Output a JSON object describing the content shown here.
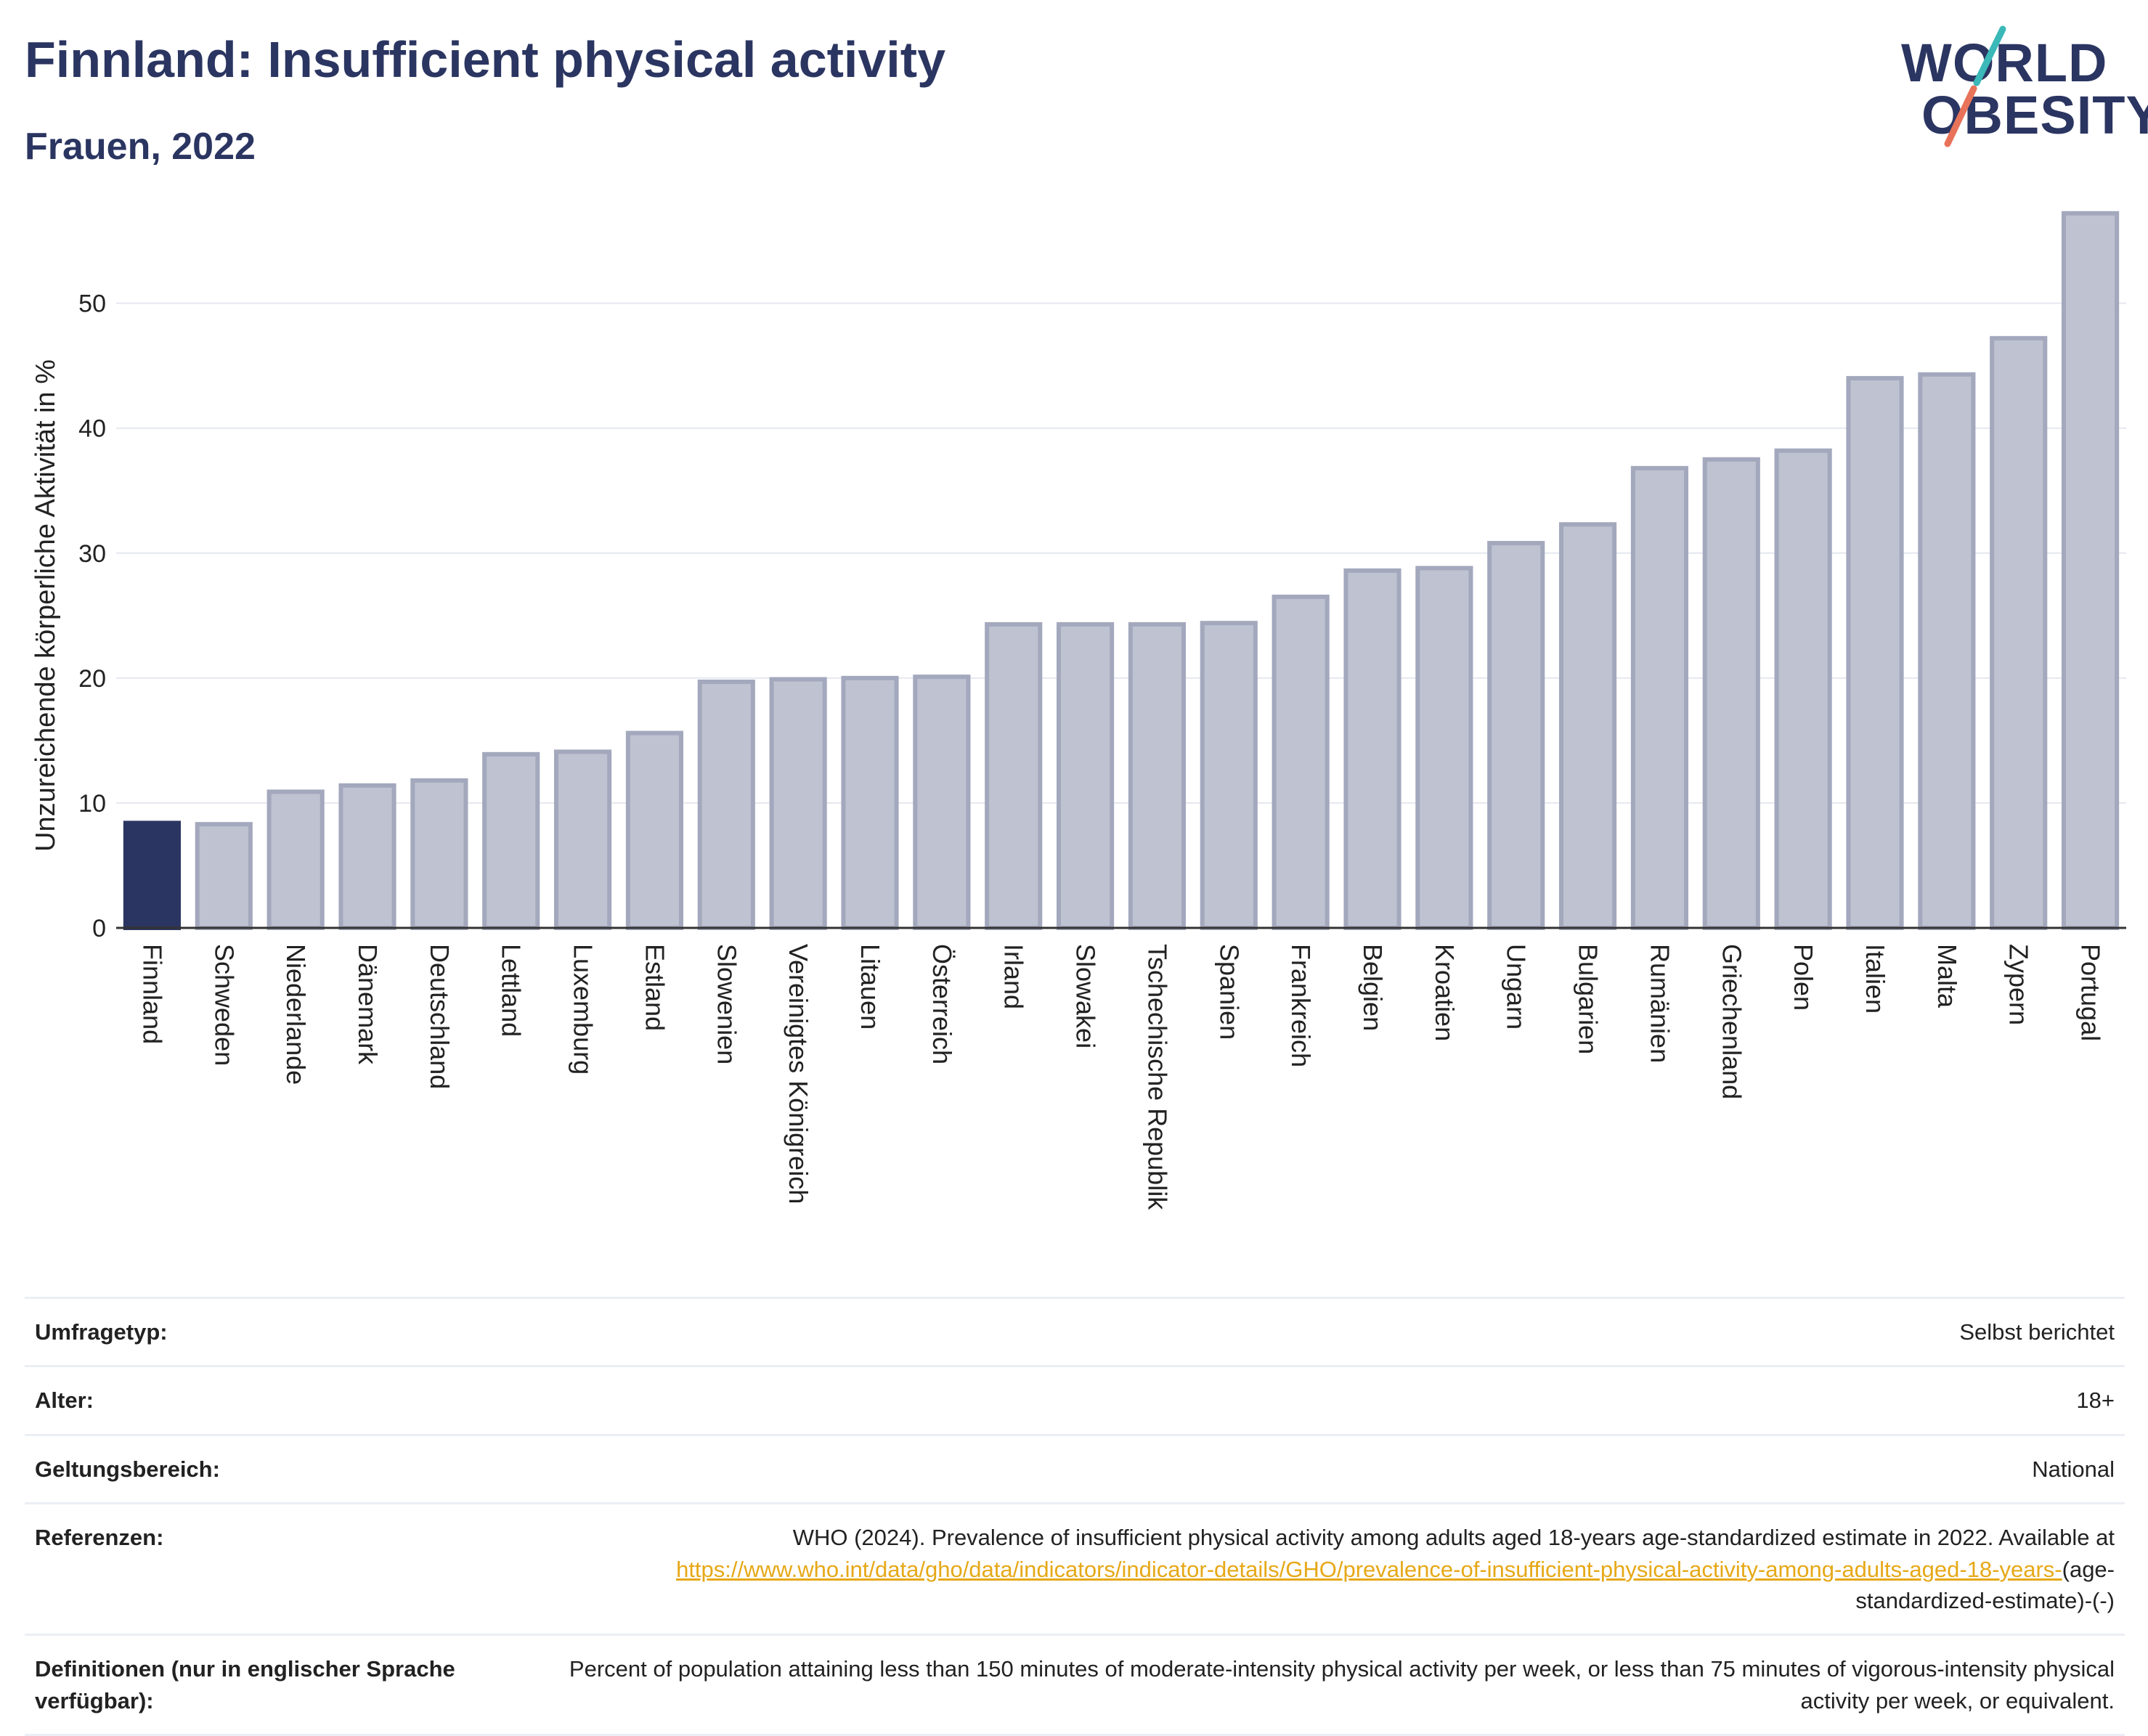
{
  "header": {
    "title": "Finnland: Insufficient physical activity",
    "subtitle": "Frauen, 2022"
  },
  "logo": {
    "line1": "WORLD",
    "line2": "OBESITY"
  },
  "colors": {
    "highlight": "#2b3561",
    "bar_fill": "#bec2d1",
    "bar_stroke": "#a3a8bd",
    "accent_teal": "#3bb8b8",
    "accent_coral": "#e8735a",
    "link": "#e6a817"
  },
  "chart_data": {
    "type": "bar",
    "ylabel": "Unzureichende körperliche Aktivität in %",
    "ylim": [
      0,
      58
    ],
    "yticks": [
      0,
      10,
      20,
      30,
      40,
      50
    ],
    "highlight": "Finnland",
    "categories": [
      "Finnland",
      "Schweden",
      "Niederlande",
      "Dänemark",
      "Deutschland",
      "Lettland",
      "Luxemburg",
      "Estland",
      "Slowenien",
      "Vereinigtes Königreich",
      "Litauen",
      "Österreich",
      "Irland",
      "Slowakei",
      "Tschechische Republik",
      "Spanien",
      "Frankreich",
      "Belgien",
      "Kroatien",
      "Ungarn",
      "Bulgarien",
      "Rumänien",
      "Griechenland",
      "Polen",
      "Italien",
      "Malta",
      "Zypern",
      "Portugal"
    ],
    "values": [
      8.4,
      8.3,
      10.9,
      11.4,
      11.8,
      13.9,
      14.1,
      15.6,
      19.7,
      19.9,
      20.0,
      20.1,
      24.3,
      24.3,
      24.3,
      24.4,
      26.5,
      28.6,
      28.8,
      30.8,
      32.3,
      36.8,
      37.5,
      38.2,
      44.0,
      44.3,
      47.2,
      57.2
    ],
    "grid": true
  },
  "meta": {
    "survey_type": {
      "label": "Umfragetyp:",
      "value": "Selbst berichtet"
    },
    "age": {
      "label": "Alter:",
      "value": "18+"
    },
    "scope": {
      "label": "Geltungsbereich:",
      "value": "National"
    },
    "references": {
      "label": "Referenzen:",
      "text": "WHO (2024). Prevalence of insufficient physical activity among adults aged 18-years age-standardized estimate in 2022. Available at",
      "link": "https://www.who.int/data/gho/data/indicators/indicator-details/GHO/prevalence-of-insufficient-physical-activity-among-adults-aged-18-years-",
      "suffix": "(age-standardized-estimate)-(-)"
    },
    "definitions": {
      "label": "Definitionen (nur in englischer Sprache verfügbar):",
      "value": "Percent of population attaining less than 150 minutes of moderate-intensity physical activity per week, or less than 75 minutes of vigorous-intensity physical activity per week, or equivalent."
    }
  }
}
